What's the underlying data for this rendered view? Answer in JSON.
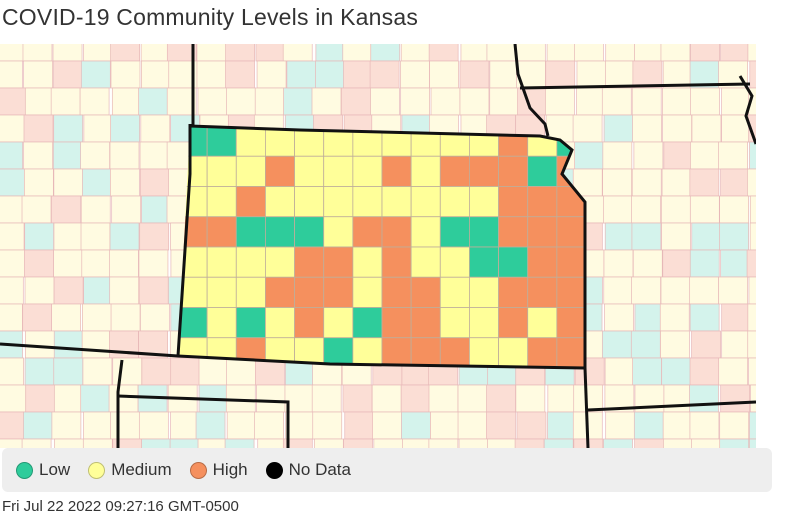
{
  "title": "COVID-19 Community Levels in Kansas",
  "timestamp": "Fri Jul 22 2022 09:27:16 GMT-0500",
  "colors": {
    "low": "#2ecc9b",
    "medium": "#ffff99",
    "high": "#f5905e",
    "no_data": "#000000",
    "outside_low": "#d4f3ec",
    "outside_medium": "#fffbe1",
    "outside_high": "#fbded5",
    "county_border": "#e7b8b8",
    "state_border": "#111111"
  },
  "legend": [
    {
      "key": "low",
      "label": "Low",
      "color": "#2ecc9b"
    },
    {
      "key": "medium",
      "label": "Medium",
      "color": "#ffff99"
    },
    {
      "key": "high",
      "label": "High",
      "color": "#f5905e"
    },
    {
      "key": "no_data",
      "label": "No Data",
      "color": "#000000"
    }
  ],
  "county_levels": [
    [
      "L",
      "L",
      "M",
      "M",
      "M",
      "M",
      "M",
      "M",
      "M",
      "M",
      "M",
      "H",
      "M",
      "L"
    ],
    [
      "M",
      "M",
      "M",
      "H",
      "M",
      "M",
      "M",
      "H",
      "M",
      "H",
      "H",
      "H",
      "L",
      "H"
    ],
    [
      "M",
      "M",
      "H",
      "M",
      "M",
      "M",
      "M",
      "M",
      "M",
      "M",
      "M",
      "H",
      "H",
      "H"
    ],
    [
      "H",
      "H",
      "L",
      "L",
      "L",
      "M",
      "H",
      "H",
      "M",
      "L",
      "L",
      "H",
      "H",
      "H"
    ],
    [
      "M",
      "M",
      "M",
      "M",
      "H",
      "H",
      "M",
      "H",
      "M",
      "M",
      "L",
      "L",
      "H",
      "H"
    ],
    [
      "M",
      "M",
      "M",
      "H",
      "H",
      "H",
      "M",
      "H",
      "H",
      "M",
      "M",
      "H",
      "H",
      "H"
    ],
    [
      "L",
      "M",
      "L",
      "M",
      "H",
      "M",
      "L",
      "H",
      "H",
      "M",
      "M",
      "H",
      "M",
      "H"
    ],
    [
      "M",
      "M",
      "H",
      "M",
      "M",
      "L",
      "M",
      "H",
      "H",
      "H",
      "M",
      "M",
      "H",
      "H"
    ]
  ],
  "icons": {
    "legend_marker": "circle-icon"
  }
}
